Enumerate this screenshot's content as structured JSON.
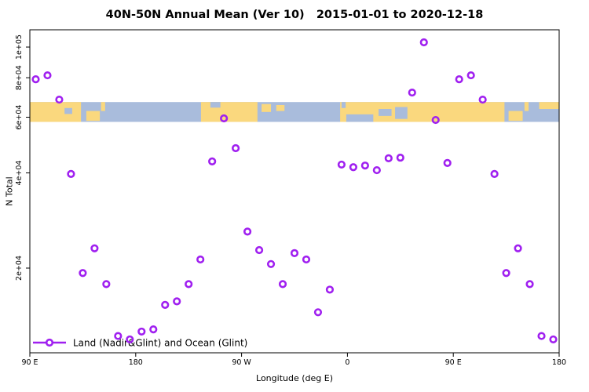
{
  "chart_data": {
    "type": "scatter",
    "title": "40N-50N Annual Mean (Ver 10)   2015-01-01 to 2020-12-18",
    "xlabel": "Longitude (deg E)",
    "ylabel": "N Total",
    "legend": "Land (Nadir&Glint) and Ocean (Glint)",
    "legend_position": "bottom-left",
    "grid": false,
    "y_scale": "log",
    "x_range": [
      90,
      540
    ],
    "y_range": [
      10795,
      113400
    ],
    "x_ticks": [
      [
        "90 E",
        90
      ],
      [
        "180",
        180
      ],
      [
        "90 W",
        270
      ],
      [
        "0",
        360
      ],
      [
        "90 E",
        450
      ],
      [
        "180",
        540
      ]
    ],
    "y_ticks": [
      [
        "1e+05",
        100000
      ],
      [
        "8e+04",
        80000
      ],
      [
        "6e+04",
        60000
      ],
      [
        "4e+04",
        40000
      ],
      [
        "2e+04",
        20000
      ]
    ],
    "points": [
      [
        95,
        79100
      ],
      [
        105,
        81400
      ],
      [
        115,
        68200
      ],
      [
        125,
        39700
      ],
      [
        135,
        19300
      ],
      [
        145,
        23100
      ],
      [
        155,
        17800
      ],
      [
        165,
        12200
      ],
      [
        175,
        11900
      ],
      [
        185,
        12600
      ],
      [
        195,
        12800
      ],
      [
        205,
        15300
      ],
      [
        215,
        15700
      ],
      [
        225,
        17800
      ],
      [
        235,
        21300
      ],
      [
        245,
        43500
      ],
      [
        255,
        59500
      ],
      [
        265,
        47900
      ],
      [
        275,
        26100
      ],
      [
        285,
        22800
      ],
      [
        295,
        20600
      ],
      [
        305,
        17800
      ],
      [
        315,
        22300
      ],
      [
        325,
        21300
      ],
      [
        335,
        14500
      ],
      [
        345,
        17100
      ],
      [
        355,
        42500
      ],
      [
        365,
        41700
      ],
      [
        375,
        42200
      ],
      [
        385,
        40800
      ],
      [
        395,
        44500
      ],
      [
        405,
        44700
      ],
      [
        415,
        71800
      ],
      [
        425,
        103500
      ],
      [
        435,
        58800
      ],
      [
        445,
        43000
      ],
      [
        455,
        79100
      ],
      [
        465,
        81400
      ],
      [
        475,
        68200
      ],
      [
        485,
        39700
      ],
      [
        495,
        19300
      ],
      [
        505,
        23100
      ],
      [
        515,
        17800
      ],
      [
        525,
        12200
      ],
      [
        535,
        11900
      ]
    ],
    "map_band": {
      "value_top": 67000,
      "value_bottom": 58000,
      "segments": [
        [
          "land",
          90,
          133.5,
          0,
          1
        ],
        [
          "ocean",
          119.5,
          126,
          0.3,
          0.6
        ],
        [
          "land",
          138,
          149.5,
          0.45,
          0.95
        ],
        [
          "land",
          150.5,
          154,
          0,
          0.45
        ],
        [
          "land",
          235.5,
          283.5,
          0,
          1
        ],
        [
          "ocean",
          243.5,
          252,
          0,
          0.28
        ],
        [
          "land",
          287,
          295,
          0.1,
          0.5
        ],
        [
          "land",
          299.5,
          306.5,
          0.15,
          0.45
        ],
        [
          "land",
          353.8,
          493.5,
          0,
          1
        ],
        [
          "ocean",
          355,
          358.5,
          0,
          0.3
        ],
        [
          "ocean",
          359,
          382,
          0.62,
          1
        ],
        [
          "ocean",
          386.5,
          397.5,
          0.35,
          0.7
        ],
        [
          "ocean",
          400.5,
          411,
          0.25,
          0.85
        ],
        [
          "land",
          497,
          509,
          0.45,
          0.95
        ],
        [
          "land",
          510.5,
          514,
          0,
          0.45
        ],
        [
          "land",
          523,
          540,
          0,
          0.35
        ]
      ]
    },
    "colors": {
      "marker": "#A020F0",
      "land": "#FAD87E",
      "ocean": "#A9BCDC",
      "axis": "#000000",
      "background": "#FFFFFF"
    }
  }
}
